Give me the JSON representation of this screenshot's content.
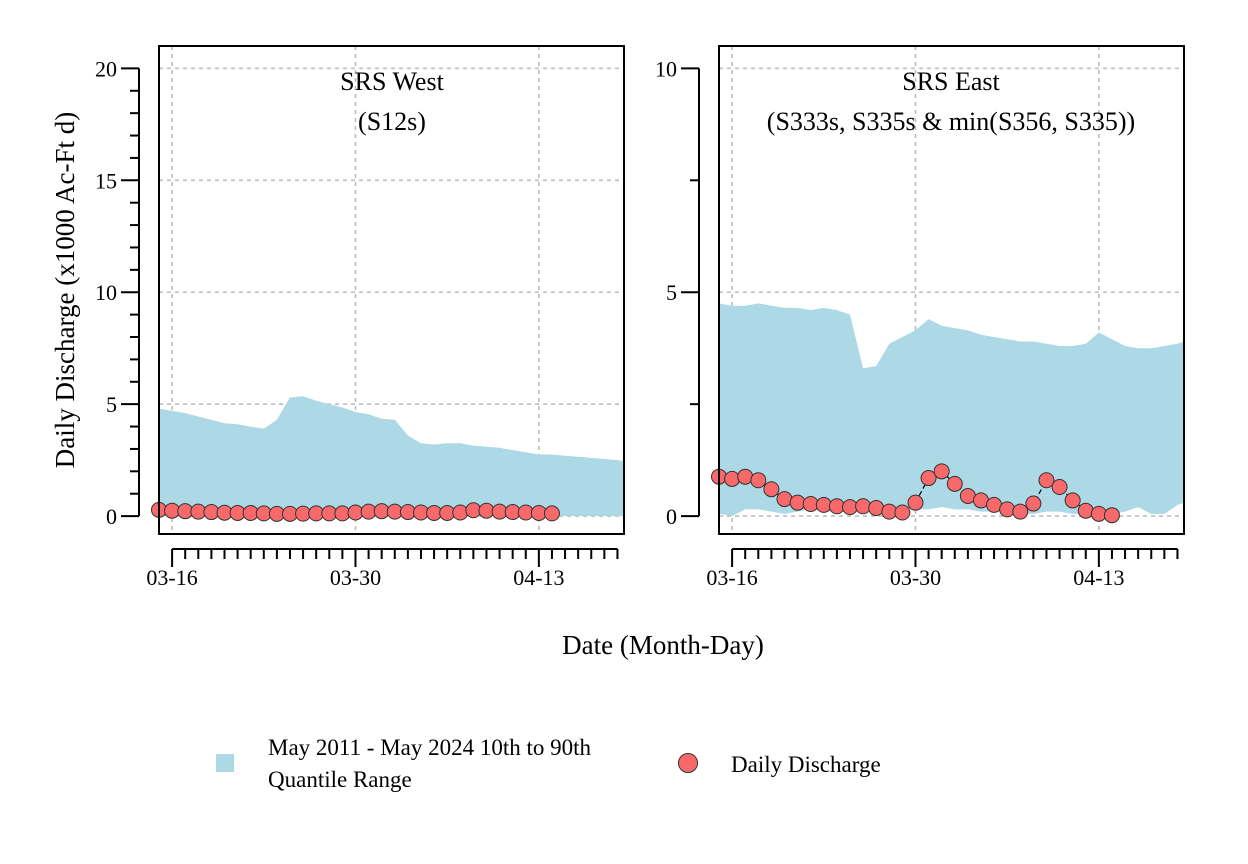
{
  "colors": {
    "band": "#ADD8E6",
    "point": "#F8696B",
    "point_stroke": "#333333"
  },
  "axis": {
    "ylabel": "Daily Discharge (x1000 Ac-Ft d)",
    "xlabel": "Date (Month-Day)"
  },
  "legend": {
    "band_label_1": "May 2011 - May 2024 10th to 90th",
    "band_label_2": "Quantile Range",
    "point_label": "Daily Discharge"
  },
  "chart_data": [
    {
      "type": "area",
      "panel": "west",
      "title": "SRS West",
      "subtitle": "(S12s)",
      "xlabel": "Date (Month-Day)",
      "ylabel": "Daily Discharge (x1000 Ac-Ft d)",
      "xlim": [
        0,
        35.5
      ],
      "ylim": [
        -0.8,
        21
      ],
      "yticks": [
        0,
        5,
        10,
        15,
        20
      ],
      "ytick_labels": [
        "0",
        "5",
        "10",
        "15",
        "20"
      ],
      "yminor_step": 1,
      "xticks": [
        1,
        15,
        29
      ],
      "xtick_labels": [
        "03-16",
        "03-30",
        "04-13"
      ],
      "band_x": [
        0,
        1,
        2,
        3,
        4,
        5,
        6,
        7,
        8,
        9,
        10,
        11,
        12,
        13,
        14,
        15,
        16,
        17,
        18,
        19,
        20,
        21,
        22,
        23,
        24,
        25,
        26,
        27,
        28,
        29,
        30,
        31,
        32,
        33,
        34,
        35,
        35.5
      ],
      "band_upper": [
        4.8,
        4.7,
        4.6,
        4.45,
        4.3,
        4.15,
        4.1,
        4.0,
        3.9,
        4.3,
        5.3,
        5.35,
        5.15,
        5.0,
        4.85,
        4.65,
        4.55,
        4.35,
        4.3,
        3.6,
        3.25,
        3.2,
        3.25,
        3.25,
        3.15,
        3.1,
        3.05,
        2.95,
        2.85,
        2.75,
        2.75,
        2.7,
        2.65,
        2.6,
        2.55,
        2.5,
        2.45
      ],
      "band_lower": [
        0,
        0,
        0,
        0,
        0,
        0,
        0,
        0,
        0,
        0,
        0,
        0,
        0,
        0,
        0,
        0,
        0,
        0,
        0,
        0,
        0,
        0,
        0,
        0,
        0,
        0,
        0,
        0,
        0,
        0,
        0,
        0,
        0,
        0,
        0,
        0,
        0
      ],
      "x": [
        0,
        1,
        2,
        3,
        4,
        5,
        6,
        7,
        8,
        9,
        10,
        11,
        12,
        13,
        14,
        15,
        16,
        17,
        18,
        19,
        20,
        21,
        22,
        23,
        24,
        25,
        26,
        27,
        28,
        29,
        30
      ],
      "values": [
        0.28,
        0.24,
        0.22,
        0.2,
        0.18,
        0.15,
        0.14,
        0.14,
        0.12,
        0.1,
        0.1,
        0.11,
        0.12,
        0.12,
        0.12,
        0.16,
        0.2,
        0.22,
        0.2,
        0.18,
        0.16,
        0.14,
        0.14,
        0.16,
        0.26,
        0.24,
        0.2,
        0.18,
        0.16,
        0.14,
        0.12
      ]
    },
    {
      "type": "area",
      "panel": "east",
      "title": "SRS East",
      "subtitle": "(S333s, S335s & min(S356, S335))",
      "xlabel": "Date (Month-Day)",
      "ylabel": "Daily Discharge (x1000 Ac-Ft d)",
      "xlim": [
        0,
        35.5
      ],
      "ylim": [
        -0.4,
        10.5
      ],
      "yticks": [
        0,
        5,
        10
      ],
      "ytick_labels": [
        "0",
        "5",
        "10"
      ],
      "yminor_step": 2.5,
      "xticks": [
        1,
        15,
        29
      ],
      "xtick_labels": [
        "03-16",
        "03-30",
        "04-13"
      ],
      "band_x": [
        0,
        1,
        2,
        3,
        4,
        5,
        6,
        7,
        8,
        9,
        10,
        11,
        12,
        13,
        14,
        15,
        16,
        17,
        18,
        19,
        20,
        21,
        22,
        23,
        24,
        25,
        26,
        27,
        28,
        29,
        30,
        31,
        32,
        33,
        34,
        35,
        35.5
      ],
      "band_upper": [
        4.75,
        4.7,
        4.7,
        4.75,
        4.7,
        4.65,
        4.65,
        4.6,
        4.65,
        4.6,
        4.5,
        3.3,
        3.35,
        3.85,
        4.0,
        4.15,
        4.4,
        4.25,
        4.2,
        4.15,
        4.05,
        4.0,
        3.95,
        3.9,
        3.9,
        3.85,
        3.8,
        3.8,
        3.85,
        4.1,
        3.95,
        3.8,
        3.75,
        3.75,
        3.8,
        3.85,
        3.9
      ],
      "band_lower": [
        0.05,
        0.0,
        0.15,
        0.15,
        0.1,
        0.05,
        0.1,
        0.15,
        0.1,
        0.1,
        0.15,
        0.2,
        0.25,
        0.2,
        0.2,
        0.15,
        0.15,
        0.2,
        0.15,
        0.15,
        0.1,
        0.1,
        0.1,
        0.05,
        0.05,
        0.1,
        0.1,
        0.05,
        0.05,
        0.05,
        0.05,
        0.1,
        0.2,
        0.05,
        0.05,
        0.25,
        0.3
      ],
      "x": [
        0,
        1,
        2,
        3,
        4,
        5,
        6,
        7,
        8,
        9,
        10,
        11,
        12,
        13,
        14,
        15,
        16,
        17,
        18,
        19,
        20,
        21,
        22,
        23,
        24,
        25,
        26,
        27,
        28,
        29,
        30
      ],
      "values": [
        0.88,
        0.83,
        0.88,
        0.8,
        0.6,
        0.38,
        0.3,
        0.27,
        0.25,
        0.22,
        0.2,
        0.22,
        0.18,
        0.1,
        0.08,
        0.3,
        0.85,
        1.0,
        0.72,
        0.45,
        0.35,
        0.25,
        0.15,
        0.1,
        0.28,
        0.8,
        0.65,
        0.35,
        0.12,
        0.05,
        0.02
      ]
    }
  ]
}
